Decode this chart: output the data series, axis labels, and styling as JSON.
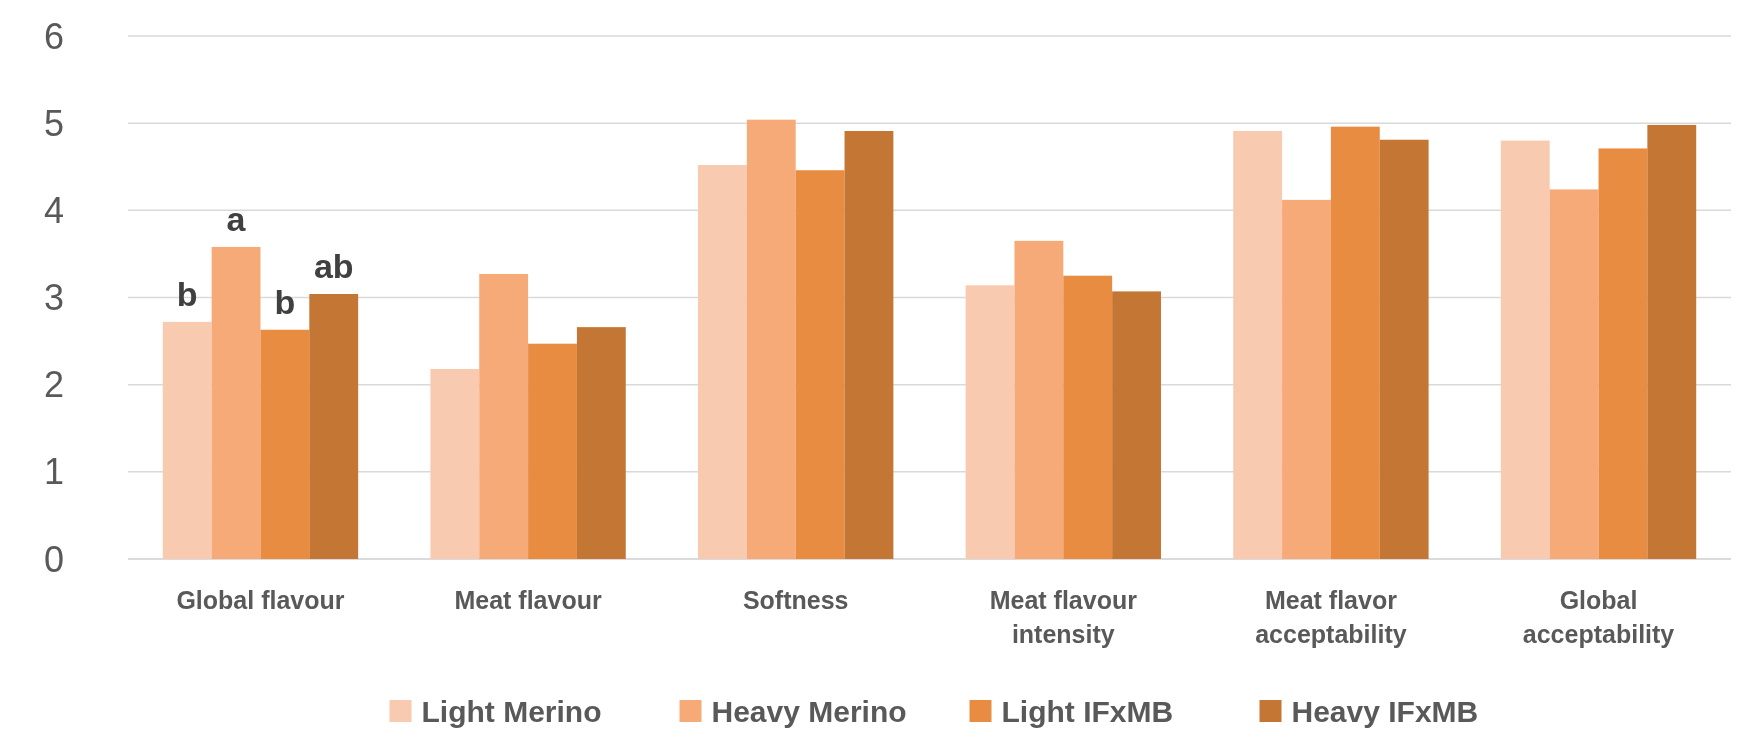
{
  "chart_data": {
    "type": "bar",
    "categories": [
      "Global flavour",
      "Meat flavour",
      "Softness",
      "Meat flavour intensity",
      "Meat flavor acceptability",
      "Global acceptability"
    ],
    "series": [
      {
        "name": "Light Merino",
        "color": "#f8cab0",
        "values": [
          2.72,
          2.18,
          4.52,
          3.14,
          4.91,
          4.8
        ]
      },
      {
        "name": "Heavy Merino",
        "color": "#f6aa78",
        "values": [
          3.58,
          3.27,
          5.04,
          3.65,
          4.12,
          4.24
        ]
      },
      {
        "name": "Light IFxMB",
        "color": "#e88c42",
        "values": [
          2.63,
          2.47,
          4.46,
          3.25,
          4.96,
          4.71
        ]
      },
      {
        "name": "Heavy IFxMB",
        "color": "#c47634",
        "values": [
          3.04,
          2.66,
          4.91,
          3.07,
          4.81,
          4.98
        ]
      }
    ],
    "ylim": [
      0,
      6
    ],
    "yticks": [
      0,
      1,
      2,
      3,
      4,
      5,
      6
    ],
    "grid": "y",
    "legend": "bottom",
    "annotations": [
      "b",
      "a",
      "b",
      "ab"
    ]
  }
}
